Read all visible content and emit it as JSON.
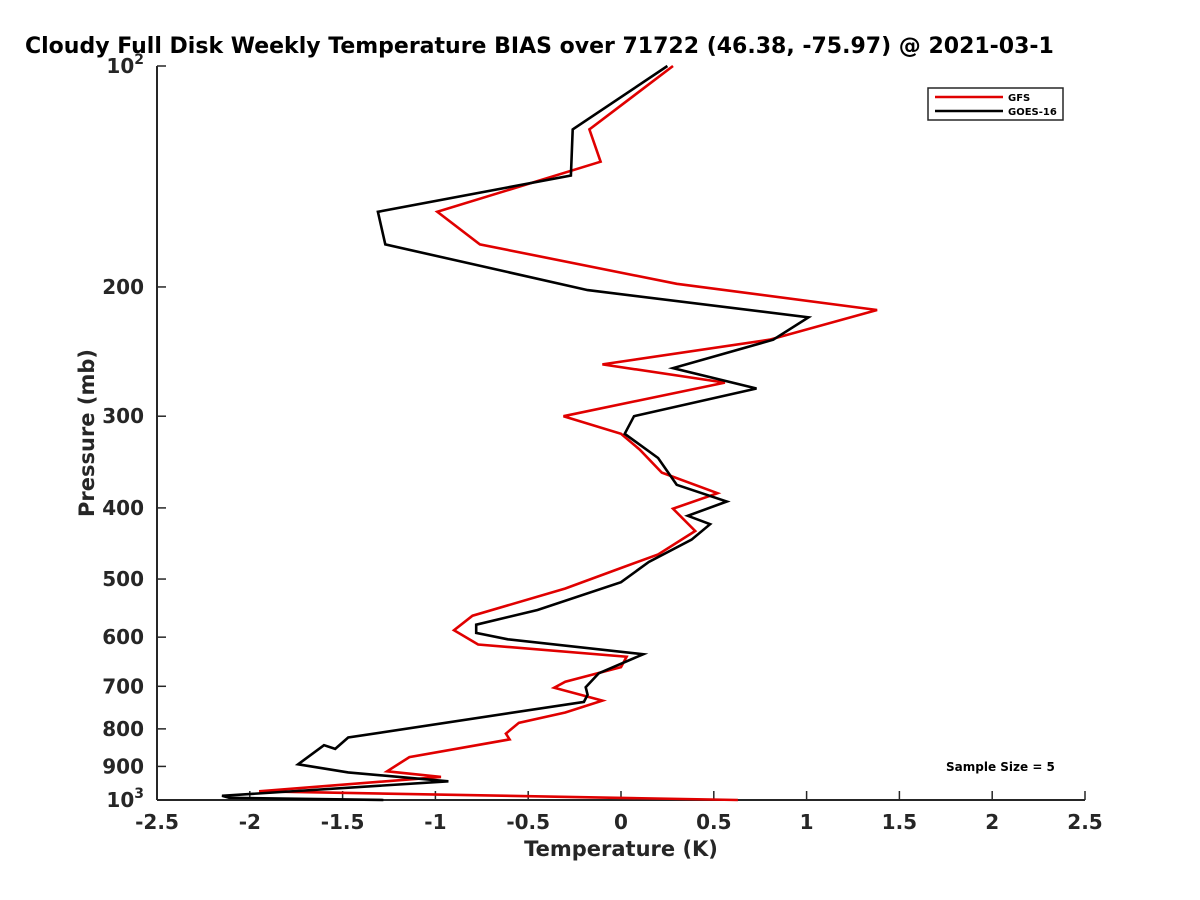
{
  "chart_data": {
    "type": "line",
    "title": "Cloudy Full Disk Weekly Temperature BIAS over 71722 (46.38, -75.97) @ 2021-03-1",
    "xlabel": "Temperature (K)",
    "ylabel": "Pressure (mb)",
    "xlim": [
      -2.5,
      2.5
    ],
    "ylim": [
      100,
      1000
    ],
    "y_scale": "log",
    "y_reversed": true,
    "grid": false,
    "legend_position": "top-right",
    "x_ticks": [
      {
        "value": -2.5,
        "label": "-2.5"
      },
      {
        "value": -2,
        "label": "-2"
      },
      {
        "value": -1.5,
        "label": "-1.5"
      },
      {
        "value": -1,
        "label": "-1"
      },
      {
        "value": -0.5,
        "label": "-0.5"
      },
      {
        "value": 0,
        "label": "0"
      },
      {
        "value": 0.5,
        "label": "0.5"
      },
      {
        "value": 1,
        "label": "1"
      },
      {
        "value": 1.5,
        "label": "1.5"
      },
      {
        "value": 2,
        "label": "2"
      },
      {
        "value": 2.5,
        "label": "2.5"
      }
    ],
    "y_ticks": [
      {
        "value": 100,
        "base": "10",
        "exp": "2"
      },
      {
        "value": 200,
        "label": "200"
      },
      {
        "value": 300,
        "label": "300"
      },
      {
        "value": 400,
        "label": "400"
      },
      {
        "value": 500,
        "label": "500"
      },
      {
        "value": 600,
        "label": "600"
      },
      {
        "value": 700,
        "label": "700"
      },
      {
        "value": 800,
        "label": "800"
      },
      {
        "value": 900,
        "label": "900"
      },
      {
        "value": 1000,
        "base": "10",
        "exp": "3"
      }
    ],
    "series": [
      {
        "name": "GFS",
        "color": "#e00000",
        "points": [
          [
            0.28,
            100
          ],
          [
            -0.17,
            122
          ],
          [
            -0.11,
            135
          ],
          [
            -0.99,
            158
          ],
          [
            -0.76,
            175
          ],
          [
            0.3,
            198
          ],
          [
            1.38,
            215
          ],
          [
            0.8,
            236
          ],
          [
            -0.1,
            255
          ],
          [
            0.56,
            270
          ],
          [
            -0.31,
            300
          ],
          [
            0.0,
            317
          ],
          [
            0.1,
            333
          ],
          [
            0.22,
            358
          ],
          [
            0.52,
            382
          ],
          [
            0.28,
            401
          ],
          [
            0.4,
            430
          ],
          [
            0.2,
            463
          ],
          [
            0.0,
            483
          ],
          [
            -0.3,
            515
          ],
          [
            -0.8,
            561
          ],
          [
            -0.9,
            587
          ],
          [
            -0.77,
            614
          ],
          [
            0.03,
            638
          ],
          [
            0.0,
            659
          ],
          [
            -0.3,
            690
          ],
          [
            -0.36,
            703
          ],
          [
            -0.1,
            732
          ],
          [
            -0.3,
            760
          ],
          [
            -0.55,
            785
          ],
          [
            -0.62,
            812
          ],
          [
            -0.6,
            827
          ],
          [
            -1.14,
            874
          ],
          [
            -1.26,
            914
          ],
          [
            -0.97,
            930
          ],
          [
            -1.95,
            973
          ],
          [
            0.63,
            1000
          ]
        ]
      },
      {
        "name": "GOES-16",
        "color": "#000000",
        "points": [
          [
            0.25,
            100
          ],
          [
            -0.26,
            122
          ],
          [
            -0.27,
            141
          ],
          [
            -1.31,
            158
          ],
          [
            -1.27,
            175
          ],
          [
            -0.18,
            202
          ],
          [
            1.01,
            220
          ],
          [
            0.82,
            236
          ],
          [
            0.28,
            258
          ],
          [
            0.73,
            275
          ],
          [
            0.07,
            300
          ],
          [
            0.02,
            317
          ],
          [
            0.2,
            342
          ],
          [
            0.3,
            372
          ],
          [
            0.57,
            392
          ],
          [
            0.36,
            410
          ],
          [
            0.48,
            421
          ],
          [
            0.38,
            442
          ],
          [
            0.15,
            474
          ],
          [
            0.0,
            505
          ],
          [
            -0.45,
            551
          ],
          [
            -0.78,
            577
          ],
          [
            -0.78,
            592
          ],
          [
            -0.61,
            604
          ],
          [
            0.12,
            633
          ],
          [
            -0.12,
            672
          ],
          [
            -0.19,
            702
          ],
          [
            -0.18,
            719
          ],
          [
            -0.2,
            735
          ],
          [
            -1.47,
            822
          ],
          [
            -1.54,
            852
          ],
          [
            -1.6,
            842
          ],
          [
            -1.74,
            894
          ],
          [
            -1.47,
            917
          ],
          [
            -0.93,
            943
          ],
          [
            -2.15,
            987
          ],
          [
            -2.11,
            993
          ],
          [
            -1.28,
            1000
          ]
        ]
      }
    ],
    "annotations": [
      {
        "text": "Sample Size = 5"
      }
    ]
  }
}
